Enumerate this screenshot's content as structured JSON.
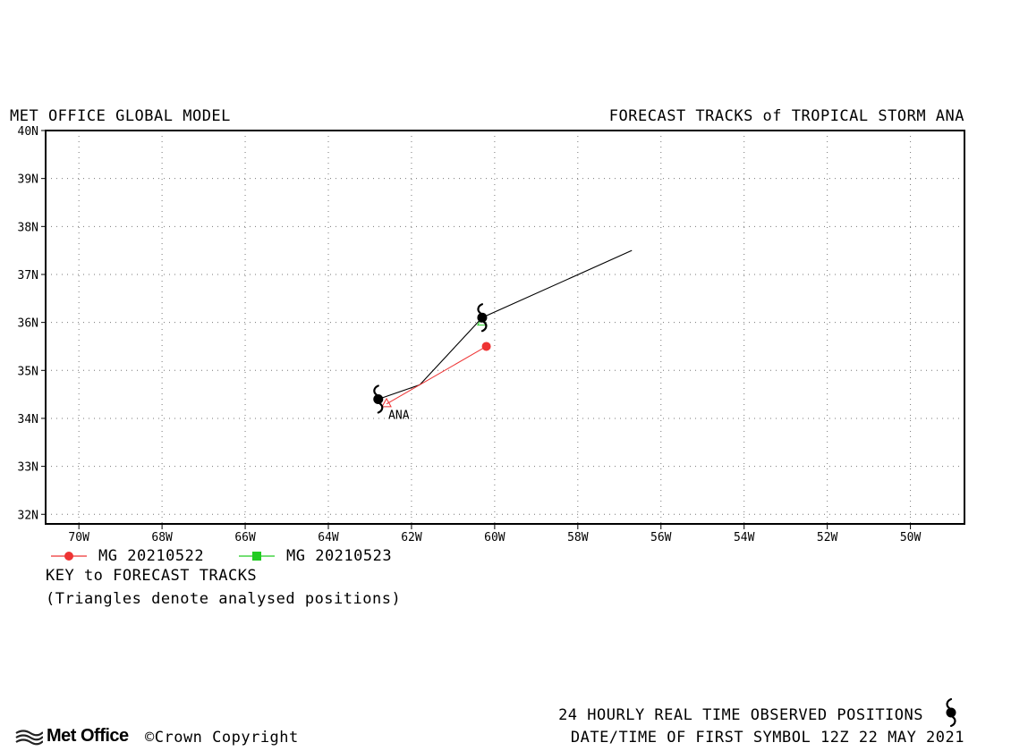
{
  "header": {
    "left_title": "MET OFFICE GLOBAL MODEL",
    "right_title": "FORECAST TRACKS of TROPICAL STORM ANA"
  },
  "map": {
    "lon_range": [
      -70.8,
      -48.7
    ],
    "lat_range": [
      31.8,
      40.0
    ],
    "lon_ticks": [
      {
        "value": -70,
        "label": "70W"
      },
      {
        "value": -68,
        "label": "68W"
      },
      {
        "value": -66,
        "label": "66W"
      },
      {
        "value": -64,
        "label": "64W"
      },
      {
        "value": -62,
        "label": "62W"
      },
      {
        "value": -60,
        "label": "60W"
      },
      {
        "value": -58,
        "label": "58W"
      },
      {
        "value": -56,
        "label": "56W"
      },
      {
        "value": -54,
        "label": "54W"
      },
      {
        "value": -52,
        "label": "52W"
      },
      {
        "value": -50,
        "label": "50W"
      }
    ],
    "lat_ticks": [
      {
        "value": 32,
        "label": "32N"
      },
      {
        "value": 33,
        "label": "33N"
      },
      {
        "value": 34,
        "label": "34N"
      },
      {
        "value": 35,
        "label": "35N"
      },
      {
        "value": 36,
        "label": "36N"
      },
      {
        "value": 37,
        "label": "37N"
      },
      {
        "value": 38,
        "label": "38N"
      },
      {
        "value": 39,
        "label": "39N"
      },
      {
        "value": 40,
        "label": "40N"
      }
    ],
    "grid": "dotted",
    "storm_label": {
      "text": "ANA",
      "lon": -62.6,
      "lat": 34.08
    },
    "observed_track": [
      {
        "lon": -62.8,
        "lat": 34.4
      },
      {
        "lon": -61.8,
        "lat": 34.7
      },
      {
        "lon": -60.3,
        "lat": 36.1
      },
      {
        "lon": -56.7,
        "lat": 37.5
      }
    ],
    "observed_symbols": [
      {
        "lon": -62.8,
        "lat": 34.4
      },
      {
        "lon": -60.3,
        "lat": 36.1
      }
    ],
    "forecast_tracks": [
      {
        "name": "MG 20210522",
        "color": "#ee3333",
        "marker": "circle",
        "analysis": {
          "lon": -62.6,
          "lat": 34.3
        },
        "points": [
          {
            "lon": -62.6,
            "lat": 34.3
          },
          {
            "lon": -60.2,
            "lat": 35.5
          }
        ]
      },
      {
        "name": "MG 20210523",
        "color": "#22cc22",
        "marker": "square",
        "analysis": {
          "lon": -60.3,
          "lat": 36.0
        },
        "points": [
          {
            "lon": -60.3,
            "lat": 36.0
          }
        ]
      }
    ]
  },
  "key": {
    "title": "KEY to FORECAST TRACKS",
    "note": "(Triangles denote analysed positions)"
  },
  "footer": {
    "observed": "24 HOURLY REAL TIME OBSERVED POSITIONS",
    "first_symbol": "DATE/TIME OF FIRST SYMBOL 12Z 22 MAY 2021",
    "logo": "Met Office",
    "copyright": "©Crown Copyright",
    "symbol_icon": "tropical-storm-icon"
  }
}
